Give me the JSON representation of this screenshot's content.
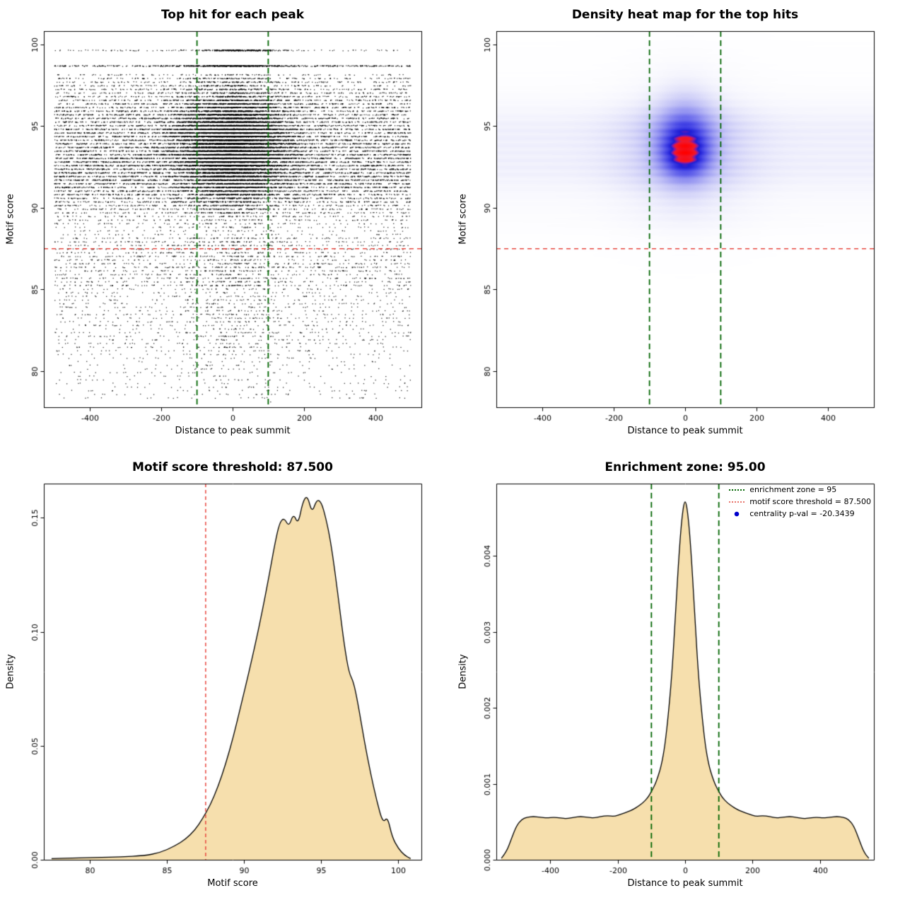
{
  "figure": {
    "background": "#ffffff"
  },
  "chart_data": [
    {
      "id": "top-hit-scatter",
      "type": "scatter",
      "title": "Top hit for each peak",
      "xlabel": "Distance to peak summit",
      "ylabel": "Motif score",
      "xlim": [
        -530,
        530
      ],
      "ylim": [
        77.8,
        100.8
      ],
      "xticks": [
        -400,
        -200,
        0,
        200,
        400
      ],
      "yticks": [
        80,
        85,
        90,
        95,
        100
      ],
      "grid": false,
      "point_color": "#000000",
      "enrichment_zone_x": [
        -100,
        100
      ],
      "zone_line_color": "#006400",
      "threshold_y": 87.5,
      "threshold_line_color": "#e8473f",
      "model": {
        "n_points": 32000,
        "y_main": {
          "w": 0.9,
          "mode": 93.6,
          "sd": 1.95,
          "fold_above": 98.15,
          "floor": 88.3
        },
        "y_tail1": {
          "w": 0.052,
          "range": [
            85.1,
            88.3
          ]
        },
        "y_tail2": {
          "w": 0.036,
          "range": [
            81.3,
            85.3
          ]
        },
        "y_tail3": {
          "w": 0.012,
          "range": [
            78.2,
            81.3
          ]
        },
        "band_step": 0.222,
        "x_range": [
          -500,
          500
        ],
        "x_center": {
          "base": 0.2,
          "amp": 0.52,
          "mu": 94,
          "var": 9,
          "sd_min": 52,
          "sd_jitter": 45
        },
        "rows": [
          {
            "y": 98.67,
            "n": 800,
            "frac_center": 0.5,
            "mu": 0,
            "sd": 80
          },
          {
            "y": 99.62,
            "n": 420,
            "frac_center": 0.72,
            "mu": 15,
            "sd": 55
          }
        ]
      }
    },
    {
      "id": "top-hit-heatmap",
      "type": "heatmap",
      "title": "Density heat map for the top hits",
      "xlabel": "Distance to peak summit",
      "ylabel": "Motif score",
      "xlim": [
        -530,
        530
      ],
      "ylim": [
        77.8,
        100.8
      ],
      "xticks": [
        -400,
        -200,
        0,
        200,
        400
      ],
      "yticks": [
        80,
        85,
        90,
        95,
        100
      ],
      "enrichment_zone_x": [
        -100,
        100
      ],
      "zone_line_color": "#006400",
      "threshold_y": 87.5,
      "threshold_line_color": "#e8473f",
      "color_stops": [
        {
          "t": 0.0,
          "color": "#ffffff"
        },
        {
          "t": 0.05,
          "color": "#f5f5fd"
        },
        {
          "t": 0.13,
          "color": "#e2e2fa"
        },
        {
          "t": 0.27,
          "color": "#c0c0f6"
        },
        {
          "t": 0.42,
          "color": "#9494f1"
        },
        {
          "t": 0.56,
          "color": "#6666eb"
        },
        {
          "t": 0.68,
          "color": "#3e3ee4"
        },
        {
          "t": 0.78,
          "color": "#1e1ed4"
        },
        {
          "t": 0.83,
          "color": "#8c19a0"
        },
        {
          "t": 0.88,
          "color": "#f0192d"
        },
        {
          "t": 1.0,
          "color": "#ff0000"
        }
      ],
      "model": {
        "base_weight": 0.62,
        "gamma": 0.85,
        "bands": [
          {
            "mu": 93.3,
            "sd": 1.45,
            "w": 0.9
          },
          {
            "mu": 94.9,
            "sd": 0.95,
            "w": 0.7
          },
          {
            "mu": 92.2,
            "sd": 0.75,
            "w": 0.45
          },
          {
            "mu": 93.8,
            "sd": 2.8,
            "w": 0.35
          },
          {
            "mu": 89.7,
            "sd": 0.8,
            "w": 0.16
          },
          {
            "mu": 91.2,
            "sd": 0.5,
            "w": 0.08
          }
        ],
        "stripe": {
          "amp": 0.15,
          "freq": 14
        },
        "x_profile": {
          "floor": 0.2,
          "sd": 115
        },
        "hot_spots": [
          {
            "x_mu": 0,
            "x_sd": 52,
            "y_mu": 94.1,
            "y_sd": 1.55,
            "w": 2.1
          },
          {
            "x_mu": 0,
            "x_sd": 42,
            "y_mu": 93.2,
            "y_sd": 0.85,
            "w": 1.5
          }
        ]
      }
    },
    {
      "id": "motif-score-density",
      "type": "area",
      "title": "Motif score threshold: 87.500",
      "xlabel": "Motif score",
      "ylabel": "Density",
      "xlim": [
        77,
        101.5
      ],
      "ylim": [
        0,
        0.165
      ],
      "xticks": [
        80,
        85,
        90,
        95,
        100
      ],
      "yticks": [
        "0.00",
        "0.05",
        "0.10",
        "0.15"
      ],
      "fill_color": "#f6dfad",
      "line_color": "#000000",
      "threshold_x": 87.5,
      "threshold_line_color": "#e8473f",
      "x": [
        77.5,
        79,
        80.5,
        82,
        83.5,
        84.5,
        85.5,
        86.2,
        86.8,
        87.3,
        87.8,
        88.3,
        88.8,
        89.3,
        89.8,
        90.3,
        90.8,
        91.2,
        91.6,
        92,
        92.3,
        92.6,
        92.9,
        93.2,
        93.5,
        93.8,
        94.1,
        94.4,
        94.7,
        95,
        95.3,
        95.6,
        95.9,
        96.2,
        96.5,
        96.8,
        97.1,
        97.4,
        97.8,
        98.2,
        98.6,
        99,
        99.3,
        99.6,
        100,
        100.4,
        100.8
      ],
      "y": [
        0.0005,
        0.0008,
        0.001,
        0.0012,
        0.0018,
        0.003,
        0.006,
        0.009,
        0.013,
        0.018,
        0.024,
        0.032,
        0.042,
        0.054,
        0.068,
        0.082,
        0.097,
        0.11,
        0.124,
        0.139,
        0.148,
        0.15,
        0.146,
        0.152,
        0.147,
        0.157,
        0.16,
        0.152,
        0.158,
        0.157,
        0.15,
        0.14,
        0.126,
        0.11,
        0.094,
        0.082,
        0.078,
        0.068,
        0.052,
        0.038,
        0.026,
        0.016,
        0.019,
        0.01,
        0.005,
        0.002,
        0.0005
      ]
    },
    {
      "id": "summit-distance-density",
      "type": "area",
      "title": "Enrichment zone: 95.00",
      "xlabel": "Distance to peak summit",
      "ylabel": "Density",
      "xlim": [
        -560,
        560
      ],
      "ylim": [
        0,
        0.00495
      ],
      "xticks": [
        -400,
        -200,
        0,
        200,
        400
      ],
      "yticks": [
        "0.000",
        "0.001",
        "0.002",
        "0.003",
        "0.004"
      ],
      "fill_color": "#f6dfad",
      "line_color": "#000000",
      "zone_x": [
        -100,
        100
      ],
      "zone_line_color": "#006400",
      "legend": [
        {
          "label": "enrichment zone = 95",
          "marker": "dotted-line",
          "color": "#006400"
        },
        {
          "label": "motif score threshold = 87.500",
          "marker": "dotted-line",
          "color": "#e8736b"
        },
        {
          "label": "centrality p-val = -20.3439",
          "marker": "point",
          "color": "#0000cc"
        }
      ],
      "x": [
        -545,
        -530,
        -515,
        -500,
        -485,
        -470,
        -450,
        -430,
        -410,
        -390,
        -370,
        -350,
        -330,
        -310,
        -290,
        -270,
        -250,
        -230,
        -210,
        -190,
        -170,
        -155,
        -140,
        -125,
        -110,
        -100,
        -90,
        -80,
        -70,
        -60,
        -50,
        -40,
        -30,
        -20,
        -10,
        0,
        10,
        20,
        30,
        40,
        50,
        60,
        70,
        80,
        90,
        100,
        110,
        125,
        140,
        155,
        170,
        190,
        210,
        230,
        250,
        270,
        290,
        310,
        330,
        350,
        370,
        390,
        410,
        430,
        450,
        470,
        485,
        500,
        515,
        530,
        545
      ],
      "y": [
        2e-05,
        0.0001,
        0.00028,
        0.00045,
        0.00053,
        0.00056,
        0.00057,
        0.00056,
        0.00055,
        0.00056,
        0.00055,
        0.00054,
        0.00056,
        0.00057,
        0.00056,
        0.00055,
        0.00057,
        0.00058,
        0.00057,
        0.0006,
        0.00063,
        0.00066,
        0.0007,
        0.00075,
        0.00082,
        0.0009,
        0.00098,
        0.0011,
        0.00125,
        0.0015,
        0.0019,
        0.0024,
        0.0031,
        0.0039,
        0.0045,
        0.00478,
        0.0045,
        0.0039,
        0.0031,
        0.0024,
        0.0019,
        0.0015,
        0.00125,
        0.0011,
        0.00098,
        0.0009,
        0.00082,
        0.00075,
        0.0007,
        0.00066,
        0.00063,
        0.0006,
        0.00057,
        0.00058,
        0.00057,
        0.00055,
        0.00056,
        0.00057,
        0.00056,
        0.00054,
        0.00055,
        0.00056,
        0.00055,
        0.00056,
        0.00057,
        0.00056,
        0.00053,
        0.00045,
        0.00028,
        0.0001,
        2e-05
      ]
    }
  ]
}
